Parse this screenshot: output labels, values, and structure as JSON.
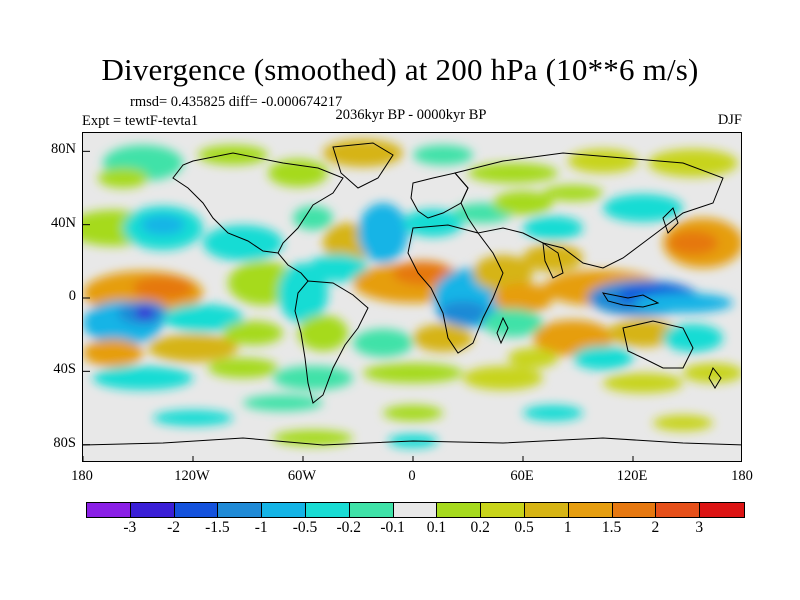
{
  "title": "Divergence (smoothed) at 200 hPa (10**6 m/s)",
  "stats": "rmsd= 0.435825 diff= -0.000674217",
  "period": "2036kyr BP - 0000kyr BP",
  "experiment": "Expt = tewtF-tevta1",
  "season": "DJF",
  "map": {
    "lon_range": [
      -180,
      180
    ],
    "lat_range": [
      -90,
      90
    ],
    "y_ticks": [
      {
        "lat": 80,
        "label": "80N"
      },
      {
        "lat": 40,
        "label": "40N"
      },
      {
        "lat": 0,
        "label": "0"
      },
      {
        "lat": -40,
        "label": "40S"
      },
      {
        "lat": -80,
        "label": "80S"
      }
    ],
    "x_ticks": [
      {
        "lon": -180,
        "label": "180"
      },
      {
        "lon": -120,
        "label": "120W"
      },
      {
        "lon": -60,
        "label": "60W"
      },
      {
        "lon": 0,
        "label": "0"
      },
      {
        "lon": 60,
        "label": "60E"
      },
      {
        "lon": 120,
        "label": "120E"
      },
      {
        "lon": 180,
        "label": "180"
      }
    ]
  },
  "colorbar": {
    "colors": [
      "#8a1fe6",
      "#3a1fd6",
      "#1452dc",
      "#1f8ad6",
      "#14b4e6",
      "#19dcd4",
      "#3fe2a8",
      "#e8e8e8",
      "#a6da1e",
      "#c8d41a",
      "#d6b414",
      "#e69e10",
      "#e67810",
      "#e6501a",
      "#dc1414"
    ],
    "labels": [
      "-3",
      "-2",
      "-1.5",
      "-1",
      "-0.5",
      "-0.2",
      "-0.1",
      "0.1",
      "0.2",
      "0.5",
      "1",
      "1.5",
      "2",
      "3"
    ]
  }
}
